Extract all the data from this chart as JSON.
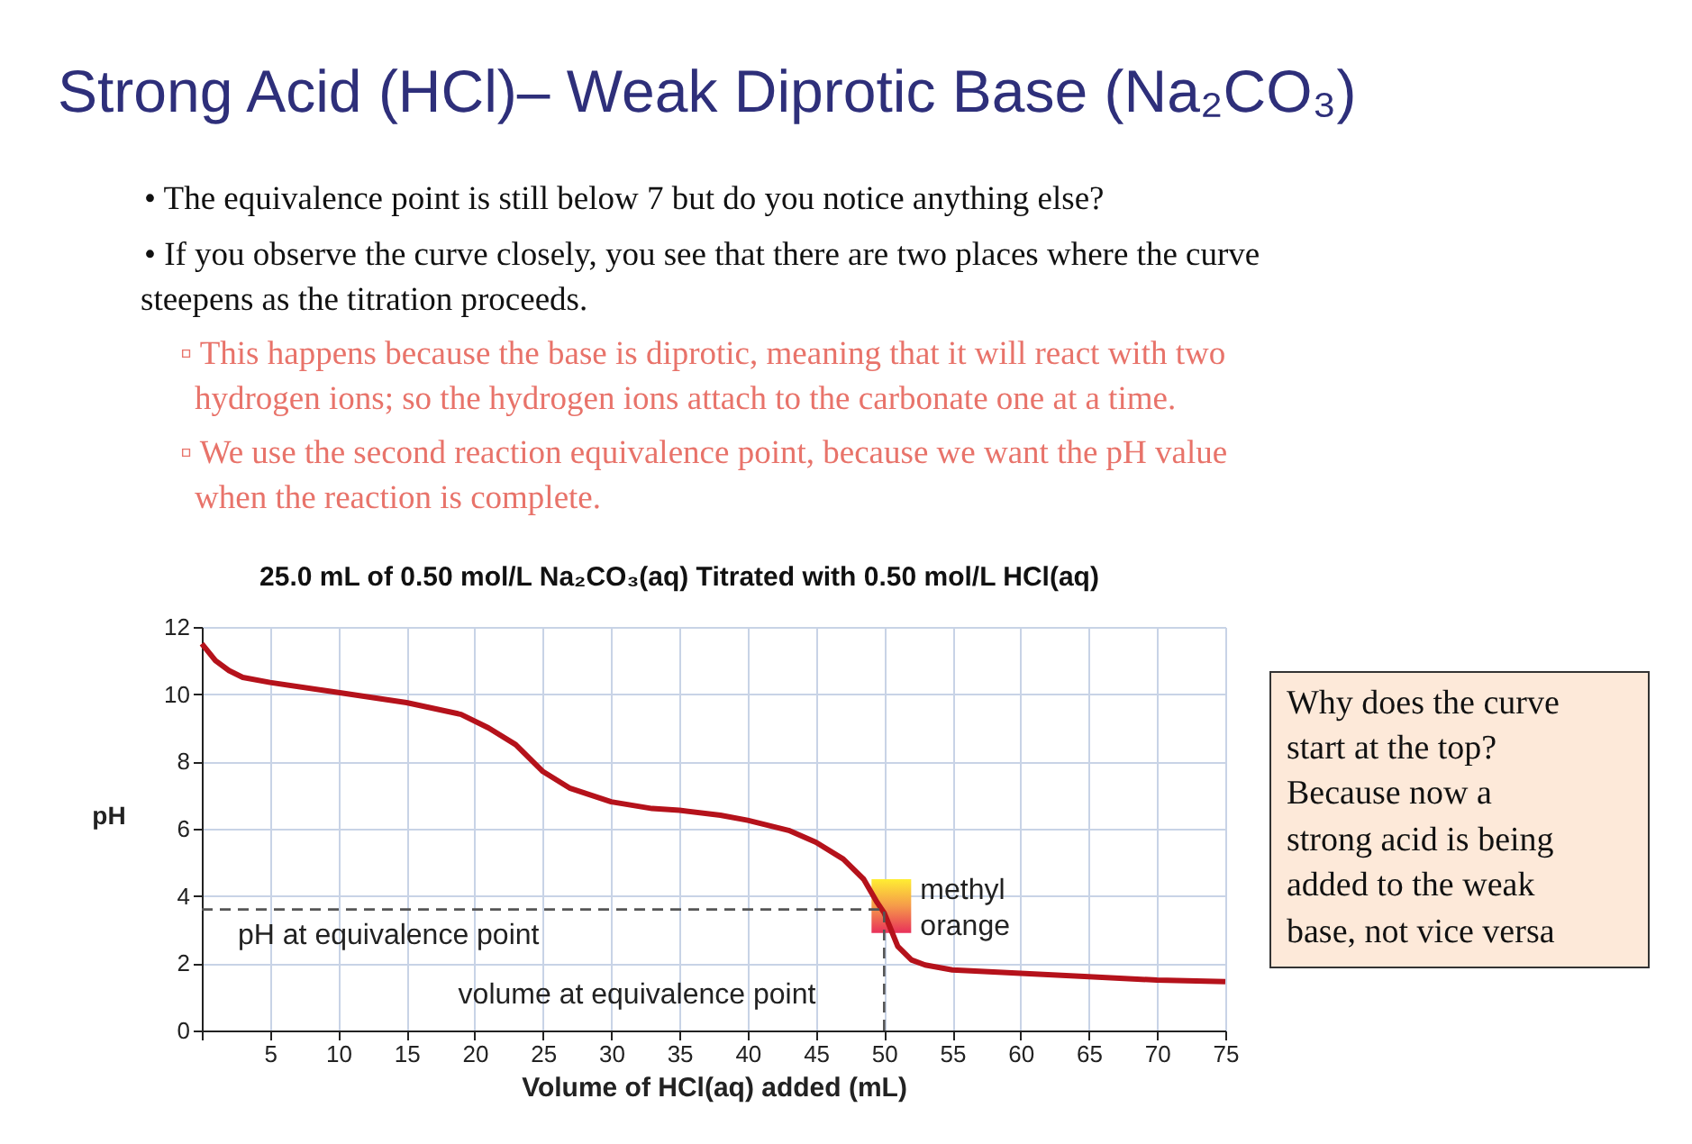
{
  "chart_data": {
    "type": "line",
    "title": "Strong Acid (HCl)– Weak Diprotic Base (Na₂CO₃)",
    "subtitle": "25.0 mL of 0.50 mol/L Na₂CO₃(aq) Titrated with 0.50 mol/L HCl(aq)",
    "xlabel": "Volume of HCl(aq) added (mL)",
    "ylabel": "pH",
    "x": [
      0,
      1,
      2,
      3,
      5,
      10,
      15,
      19,
      21,
      23,
      24,
      25,
      27,
      30,
      33,
      35,
      38,
      40,
      43,
      45,
      47,
      48.5,
      49.5,
      50,
      50.5,
      51,
      52,
      53,
      55,
      60,
      65,
      70,
      75
    ],
    "series": [
      {
        "type": "bar",
        "name": "methyl orange",
        "color": "#f59a4a",
        "x": [
          50
        ],
        "base": [
          2.9
        ],
        "values": [
          1.6
        ]
      },
      {
        "color": "#b5121b",
        "values": [
          11.5,
          11.0,
          10.7,
          10.5,
          10.35,
          10.05,
          9.75,
          9.4,
          9.0,
          8.5,
          8.1,
          7.7,
          7.2,
          6.8,
          6.6,
          6.55,
          6.4,
          6.25,
          5.95,
          5.6,
          5.1,
          4.5,
          3.8,
          3.5,
          3.0,
          2.5,
          2.1,
          1.95,
          1.8,
          1.7,
          1.6,
          1.5,
          1.45
        ]
      }
    ],
    "xlim": [
      0,
      75
    ],
    "ylim": [
      0,
      12
    ],
    "xticks": [
      {
        "value": 0,
        "label": null
      },
      5,
      10,
      15,
      20,
      25,
      30,
      35,
      40,
      45,
      50,
      55,
      60,
      65,
      70,
      75
    ],
    "yticks": [
      0,
      2,
      4,
      6,
      8,
      10,
      12
    ],
    "grid": true,
    "marker": "none",
    "line_style": "solid",
    "ref_lines": [
      {
        "axis": "y",
        "value": 3.6,
        "color": "#555555",
        "line_style": "dashed"
      },
      {
        "axis": "x",
        "value": 50,
        "color": "#555555",
        "line_style": "dashed"
      }
    ],
    "annotations": [
      "• The equivalence point is still below 7 but do you notice anything else?",
      "• If you observe the curve closely, you see that there are two places where the curve",
      "steepens as the titration proceeds.",
      "▫ This happens because the base is diprotic, meaning that it will react with two",
      "hydrogen ions; so the hydrogen ions attach to the carbonate one at a time.",
      "▫ We use the second reaction equivalence point, because we want the pH value",
      "when the reaction is complete.",
      {
        "text": "pH at equivalence point",
        "x": 0,
        "y": 3.6
      },
      {
        "text": "volume at equivalence point",
        "x": 50,
        "y": 0
      },
      "Why does the curve",
      "start at the top?",
      "Because now a",
      "strong acid is being",
      "added to the weak",
      "base, not vice versa"
    ]
  }
}
